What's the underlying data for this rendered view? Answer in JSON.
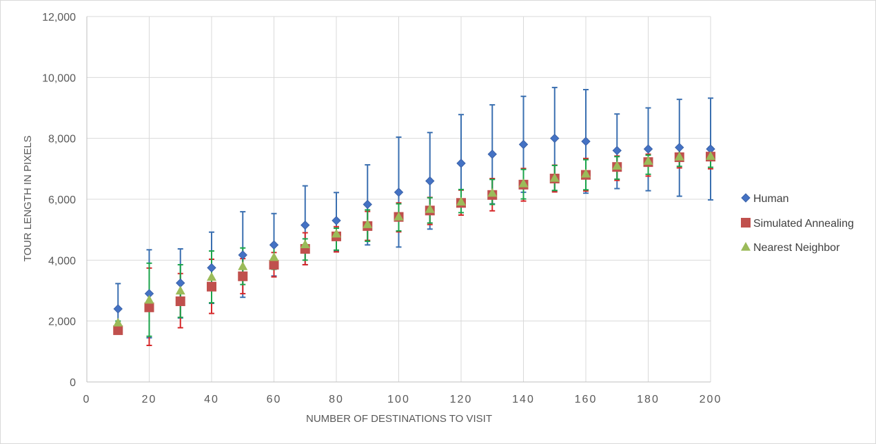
{
  "chart_data": {
    "type": "scatter",
    "title": "",
    "xlabel": "NUMBER OF DESTINATIONS TO VISIT",
    "ylabel": "TOUR LENGTH IN PIXELS",
    "xlim": [
      0,
      200
    ],
    "ylim": [
      0,
      12000
    ],
    "x_ticks": [
      0,
      20,
      40,
      60,
      80,
      100,
      120,
      140,
      160,
      180,
      200
    ],
    "x_tick_labels": [
      "0",
      "20",
      "40",
      "60",
      "80",
      "100",
      "120",
      "140",
      "160",
      "180",
      "200"
    ],
    "y_ticks": [
      0,
      2000,
      4000,
      6000,
      8000,
      10000,
      12000
    ],
    "y_tick_labels": [
      "0",
      "2,000",
      "4,000",
      "6,000",
      "8,000",
      "10,000",
      "12,000"
    ],
    "grid": true,
    "legend_position": "right",
    "x": [
      10,
      20,
      30,
      40,
      50,
      60,
      70,
      80,
      90,
      100,
      110,
      120,
      130,
      140,
      150,
      160,
      170,
      180,
      190,
      200
    ],
    "series": [
      {
        "name": "Human",
        "marker": "diamond",
        "color": "#4472c4",
        "values": [
          2400,
          2900,
          3250,
          3750,
          4170,
          4500,
          5150,
          5300,
          5830,
          6230,
          6600,
          7180,
          7480,
          7800,
          8000,
          7900,
          7600,
          7650,
          7700,
          7650
        ],
        "err_low": [
          1930,
          1450,
          2100,
          2580,
          2780,
          3480,
          3850,
          4300,
          4500,
          4430,
          5020,
          5480,
          5850,
          6230,
          6270,
          6200,
          6350,
          6280,
          6100,
          5980
        ],
        "err_high": [
          3230,
          4340,
          4370,
          4920,
          5590,
          5530,
          6440,
          6220,
          7130,
          8040,
          8190,
          8780,
          9100,
          9380,
          9670,
          9600,
          8800,
          9000,
          9280,
          9320
        ]
      },
      {
        "name": "Simulated Annealing",
        "marker": "square",
        "color": "#c0504d",
        "values": [
          1700,
          2450,
          2650,
          3130,
          3470,
          3850,
          4370,
          4780,
          5120,
          5420,
          5630,
          5880,
          6140,
          6480,
          6680,
          6800,
          7060,
          7220,
          7380,
          7400
        ],
        "err_low": [
          1700,
          1200,
          1780,
          2250,
          2900,
          3450,
          3850,
          4270,
          4650,
          4930,
          5170,
          5480,
          5620,
          5940,
          6240,
          6270,
          6620,
          6760,
          7030,
          7000
        ],
        "err_high": [
          1920,
          3740,
          3560,
          4030,
          4050,
          4250,
          4900,
          5100,
          5600,
          5880,
          6060,
          6300,
          6680,
          7010,
          7120,
          7340,
          7420,
          7480,
          7700,
          7700
        ]
      },
      {
        "name": "Nearest Neighbor",
        "marker": "triangle",
        "color": "#9bbb59",
        "values": [
          1950,
          2700,
          3000,
          3450,
          3800,
          4100,
          4520,
          4870,
          5180,
          5430,
          5680,
          5920,
          6210,
          6520,
          6700,
          6840,
          7100,
          7260,
          7400,
          7420
        ],
        "err_low": [
          1900,
          1500,
          2120,
          2600,
          3200,
          3700,
          4000,
          4330,
          4620,
          4960,
          5220,
          5560,
          5830,
          6010,
          6290,
          6310,
          6660,
          6820,
          7080,
          7050
        ],
        "err_high": [
          2000,
          3900,
          3850,
          4300,
          4400,
          4500,
          4700,
          5050,
          5650,
          5850,
          6050,
          6320,
          6650,
          6980,
          7110,
          7300,
          7400,
          7450,
          7680,
          7700
        ]
      }
    ]
  }
}
